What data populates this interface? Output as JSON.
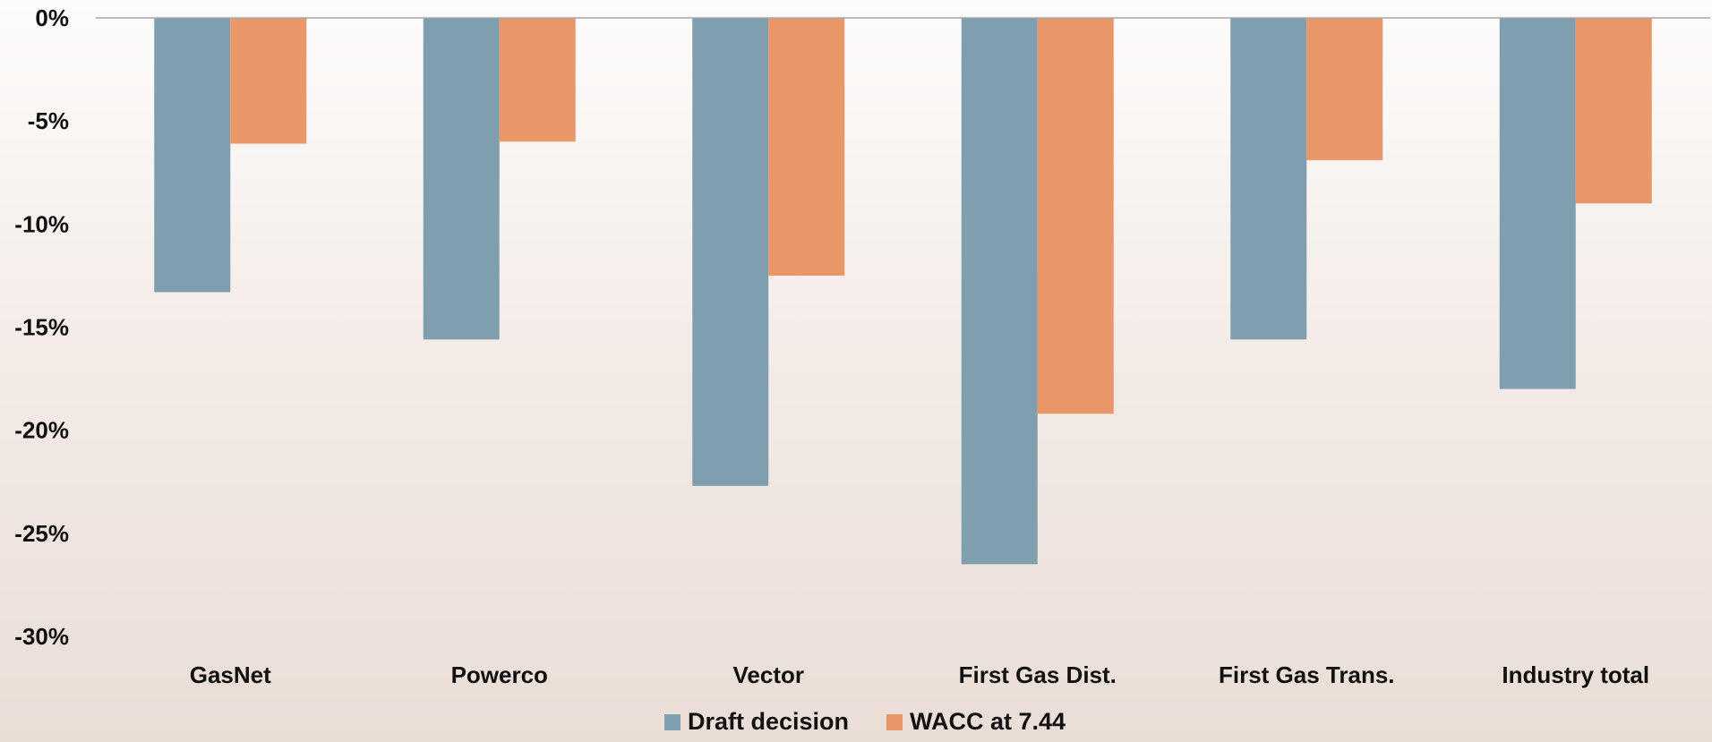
{
  "chart_data": {
    "type": "bar",
    "title": "",
    "xlabel": "",
    "ylabel": "",
    "ylim": [
      -30,
      0
    ],
    "yticks": [
      0,
      -5,
      -10,
      -15,
      -20,
      -25,
      -30
    ],
    "ytick_labels": [
      "0%",
      "-5%",
      "-10%",
      "-15%",
      "-20%",
      "-25%",
      "-30%"
    ],
    "categories": [
      "GasNet",
      "Powerco",
      "Vector",
      "First Gas Dist.",
      "First Gas Trans.",
      "Industry total"
    ],
    "series": [
      {
        "name": "Draft decision",
        "color": "#7f9fae",
        "values": [
          -13.3,
          -15.6,
          -22.7,
          -26.5,
          -15.6,
          -18.0
        ]
      },
      {
        "name": "WACC at 7.44",
        "color": "#e99668",
        "values": [
          -6.1,
          -6.0,
          -12.5,
          -19.2,
          -6.9,
          -9.0
        ]
      }
    ],
    "grid": false,
    "legend_position": "bottom"
  }
}
